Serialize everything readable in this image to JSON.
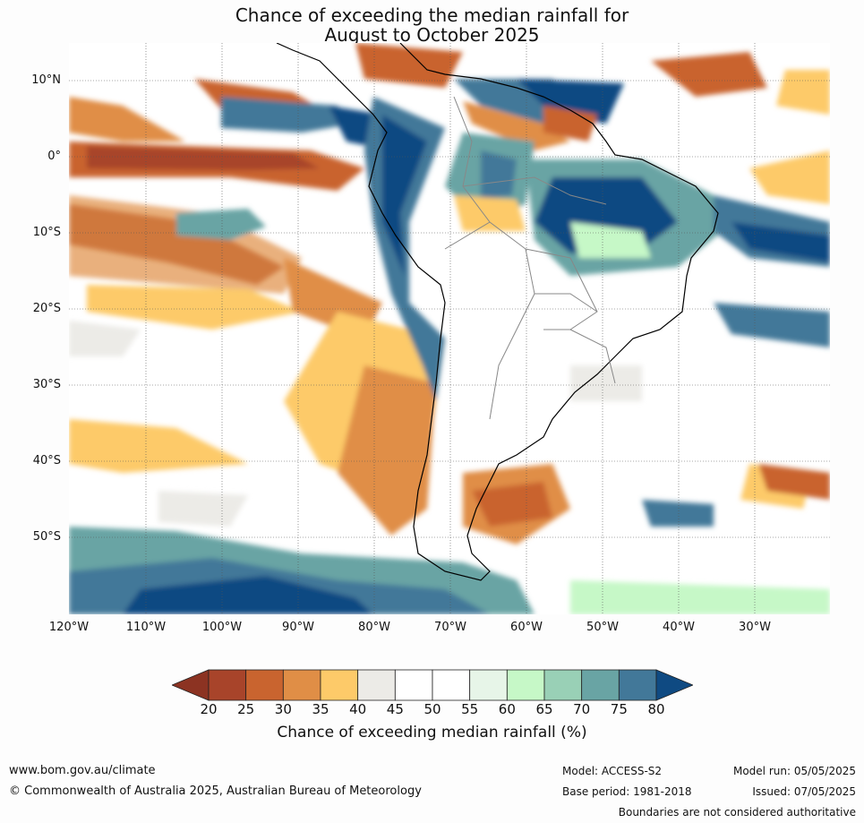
{
  "title_line1": "Chance of exceeding the median rainfall for",
  "title_line2": "August to October 2025",
  "lat_labels": [
    "10°N",
    "0°",
    "10°S",
    "20°S",
    "30°S",
    "40°S",
    "50°S"
  ],
  "lon_labels": [
    "120°W",
    "110°W",
    "100°W",
    "90°W",
    "80°W",
    "70°W",
    "60°W",
    "50°W",
    "40°W",
    "30°W"
  ],
  "colorbar": {
    "ticks": [
      "20",
      "25",
      "30",
      "35",
      "40",
      "45",
      "50",
      "55",
      "60",
      "65",
      "70",
      "75",
      "80"
    ],
    "colors": [
      "#a8442a",
      "#c9642f",
      "#e08e46",
      "#fdca69",
      "#ecebe7",
      "#ffffff",
      "#ffffff",
      "#e7f5e8",
      "#c6f8c7",
      "#99d0b6",
      "#69a4a4",
      "#427899",
      "#0f4a82"
    ],
    "label": "Chance of exceeding median rainfall (%)"
  },
  "footer": {
    "url": "www.bom.gov.au/climate",
    "copyright": "© Commonwealth of Australia 2025, Australian Bureau of Meteorology",
    "model": "Model: ACCESS-S2",
    "base_period": "Base period: 1981-2018",
    "model_run": "Model run: 05/05/2025",
    "issued": "Issued: 07/05/2025",
    "disclaimer": "Boundaries are not considered authoritative"
  }
}
